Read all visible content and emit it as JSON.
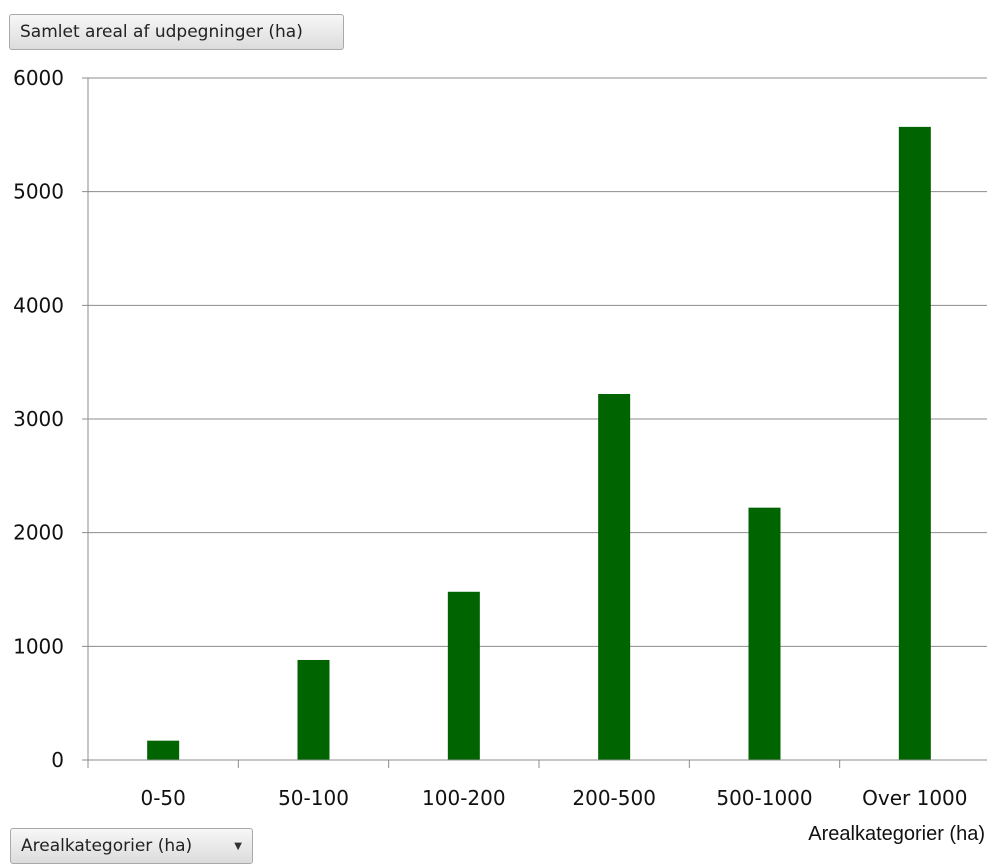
{
  "field_buttons": {
    "values_field": "Samlet areal af udpegninger (ha)",
    "axis_field": "Arealkategorier (ha)"
  },
  "icons": {
    "axis_field_dropdown": "chevron-down-icon"
  },
  "colors": {
    "bar": "#006400",
    "grid": "#8c8c8c",
    "axis": "#8c8c8c"
  },
  "chart_data": {
    "type": "bar",
    "title": "",
    "xlabel": "Arealkategorier (ha)",
    "ylabel": "",
    "categories": [
      "0-50",
      "50-100",
      "100-200",
      "200-500",
      "500-1000",
      "Over 1000"
    ],
    "series": [
      {
        "values": [
          170,
          880,
          1480,
          3220,
          2220,
          5570
        ]
      }
    ],
    "ylim": [
      0,
      6000
    ],
    "yticks": [
      0,
      1000,
      2000,
      3000,
      4000,
      5000,
      6000
    ],
    "grid": true,
    "legend": "none"
  }
}
